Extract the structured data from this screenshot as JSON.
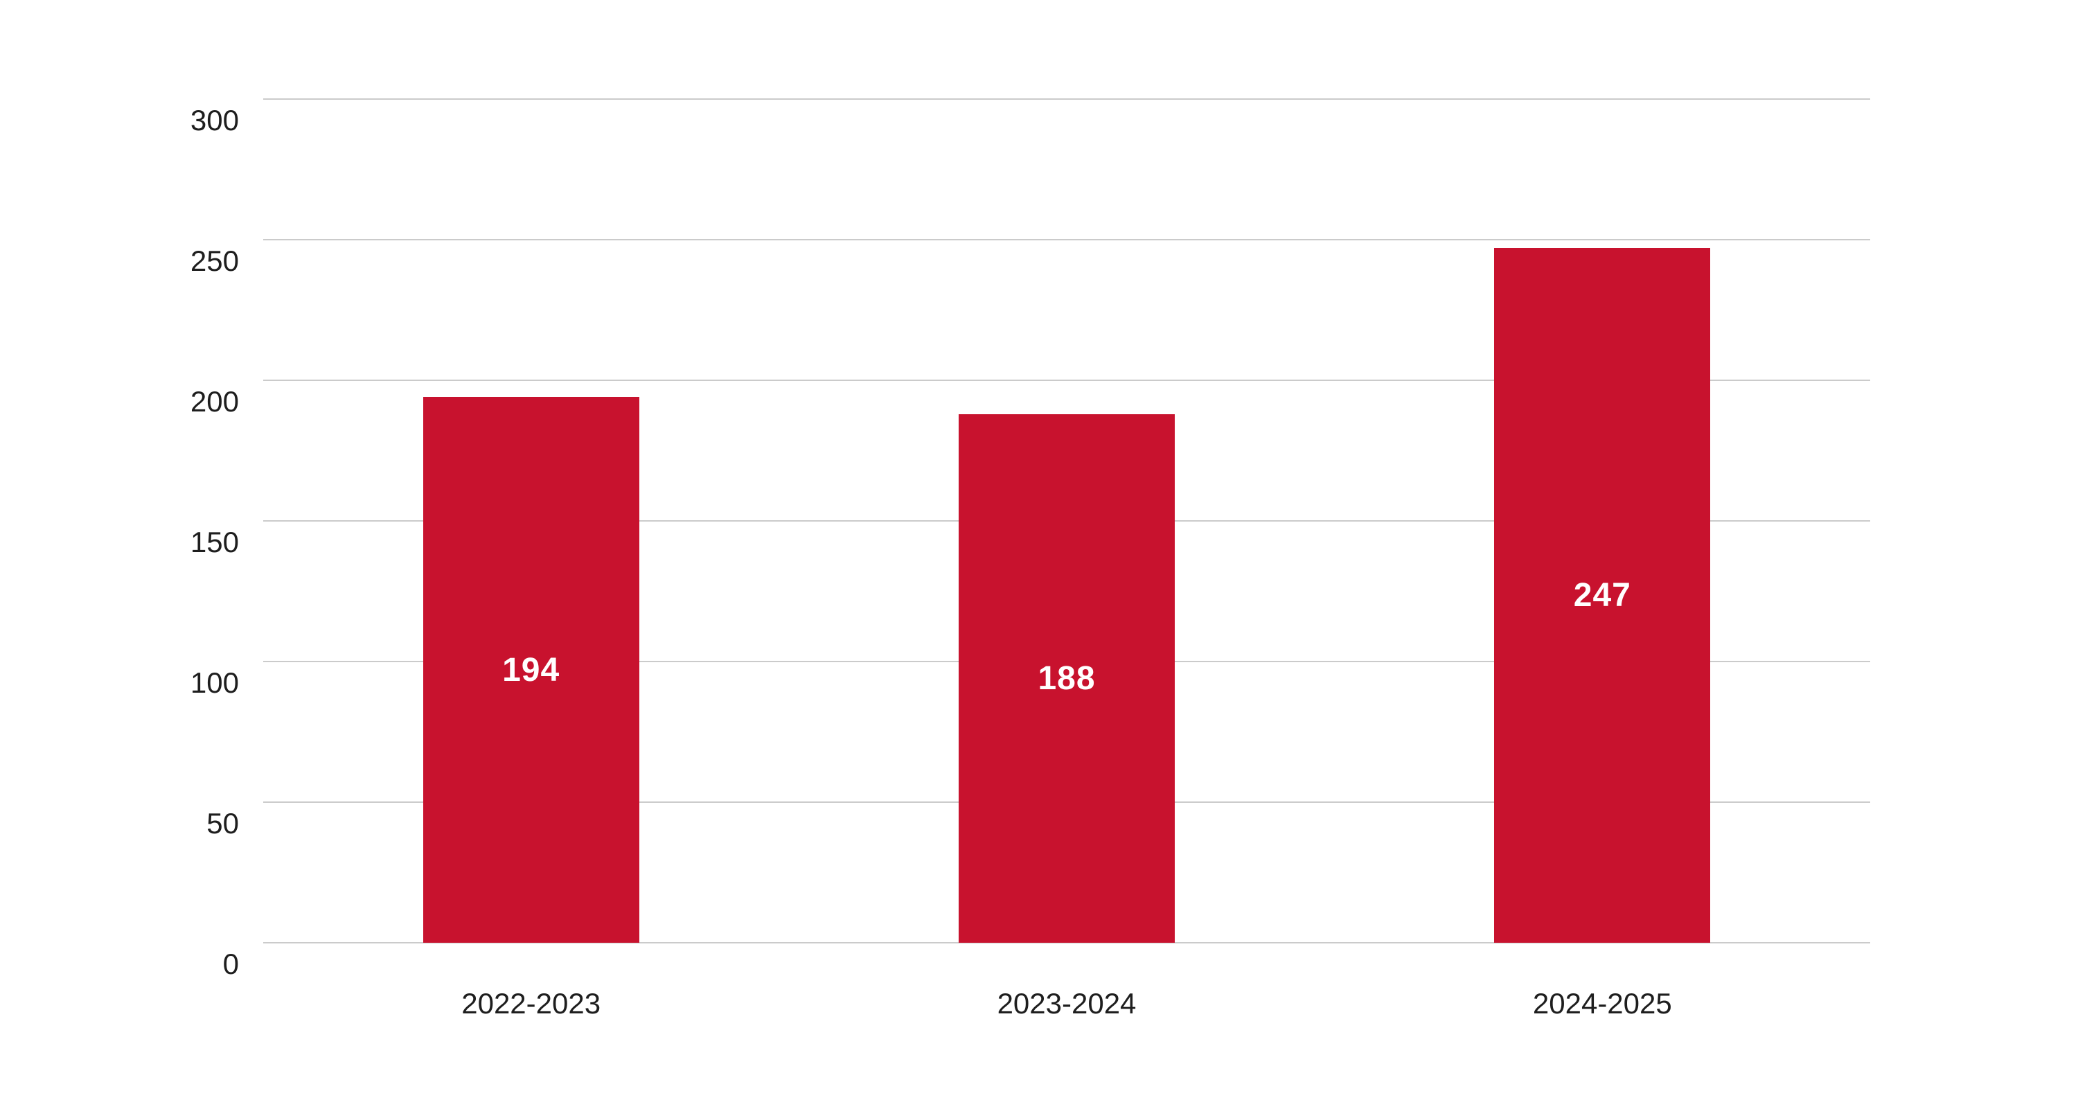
{
  "chart_data": {
    "type": "bar",
    "categories": [
      "2022-2023",
      "2023-2024",
      "2024-2025"
    ],
    "values": [
      194,
      188,
      247
    ],
    "data_labels": [
      "194",
      "188",
      "247"
    ],
    "title": "",
    "xlabel": "",
    "ylabel": "",
    "ylim": [
      0,
      300
    ],
    "yticks": [
      "0",
      "50",
      "100",
      "150",
      "200",
      "250",
      "300"
    ],
    "ytick_values": [
      0,
      50,
      100,
      150,
      200,
      250,
      300
    ],
    "grid": true,
    "legend": "none",
    "colors": {
      "bar": "#c8122e",
      "bar_label_text": "#ffffff",
      "axis_text": "#1e1e1e",
      "gridline": "#cbcbcb",
      "background": "#ffffff"
    }
  }
}
